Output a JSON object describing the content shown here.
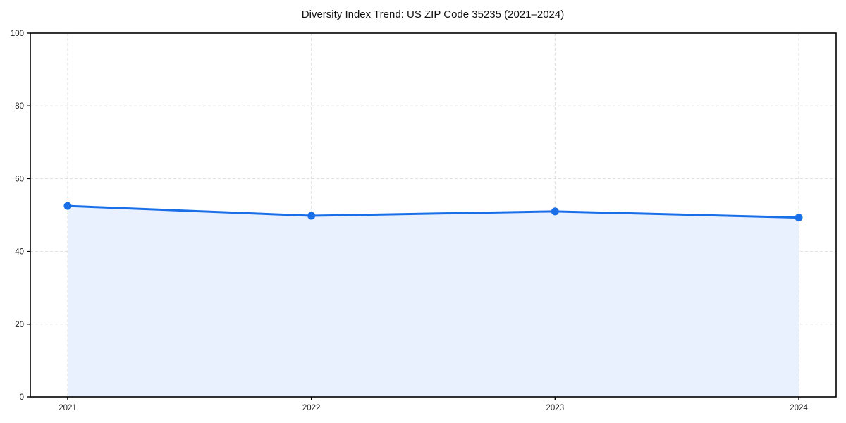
{
  "chart_data": {
    "type": "line",
    "title": "Diversity Index Trend: US ZIP Code 35235 (2021–2024)",
    "categories": [
      "2021",
      "2022",
      "2023",
      "2024"
    ],
    "series": [
      {
        "name": "Diversity Index",
        "values": [
          52.5,
          49.8,
          51.0,
          49.3
        ]
      }
    ],
    "xlabel": "",
    "ylabel": "",
    "ylim": [
      0,
      100
    ],
    "yticks": [
      0,
      20,
      40,
      60,
      80,
      100
    ],
    "grid": true,
    "grid_style": "dashed",
    "legend_position": "none",
    "colors": {
      "line": "#1a6fe8",
      "marker": "#1a6fe8",
      "area_fill": "#e8f1fd",
      "gridline": "#dcdcdc",
      "spine": "#000000",
      "background": "#ffffff"
    }
  }
}
